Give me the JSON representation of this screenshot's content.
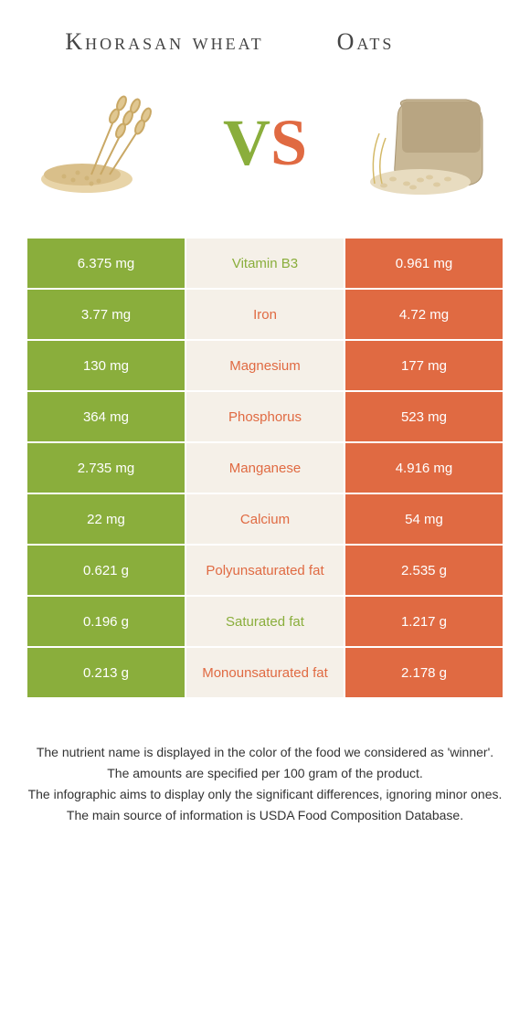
{
  "header": {
    "left_title": "Khorasan wheat",
    "right_title": "Oats"
  },
  "vs": {
    "v": "V",
    "s": "S"
  },
  "colors": {
    "left": "#8aae3c",
    "right": "#e06a42",
    "mid_bg": "#f5f0e8",
    "text_on_color": "#ffffff"
  },
  "rows": [
    {
      "left": "6.375 mg",
      "label": "Vitamin B3",
      "right": "0.961 mg",
      "winner": "left"
    },
    {
      "left": "3.77 mg",
      "label": "Iron",
      "right": "4.72 mg",
      "winner": "right"
    },
    {
      "left": "130 mg",
      "label": "Magnesium",
      "right": "177 mg",
      "winner": "right"
    },
    {
      "left": "364 mg",
      "label": "Phosphorus",
      "right": "523 mg",
      "winner": "right"
    },
    {
      "left": "2.735 mg",
      "label": "Manganese",
      "right": "4.916 mg",
      "winner": "right"
    },
    {
      "left": "22 mg",
      "label": "Calcium",
      "right": "54 mg",
      "winner": "right"
    },
    {
      "left": "0.621 g",
      "label": "Polyunsaturated fat",
      "right": "2.535 g",
      "winner": "right"
    },
    {
      "left": "0.196 g",
      "label": "Saturated fat",
      "right": "1.217 g",
      "winner": "left"
    },
    {
      "left": "0.213 g",
      "label": "Monounsaturated fat",
      "right": "2.178 g",
      "winner": "right"
    }
  ],
  "footnotes": [
    "The nutrient name is displayed in the color of the food we considered as 'winner'.",
    "The amounts are specified per 100 gram of the product.",
    "The infographic aims to display only the significant differences, ignoring minor ones.",
    "The main source of information is USDA Food Composition Database."
  ]
}
